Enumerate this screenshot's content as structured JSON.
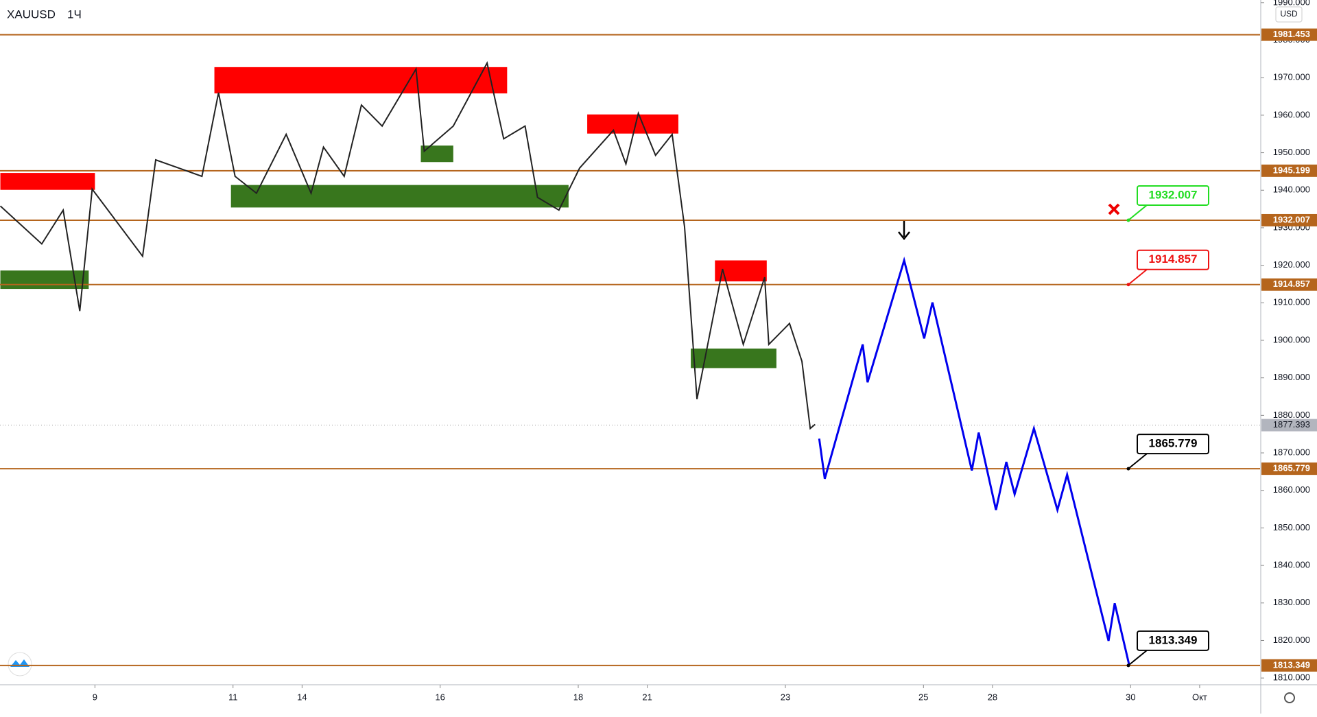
{
  "chart_data": {
    "type": "line",
    "symbol": "XAUUSD",
    "interval": "1Ч",
    "currency": "USD",
    "xlim": [
      -1.375,
      16.875
    ],
    "xticks": [
      {
        "value": 0,
        "label": "9"
      },
      {
        "value": 2,
        "label": "11"
      },
      {
        "value": 3,
        "label": "14"
      },
      {
        "value": 5,
        "label": "16"
      },
      {
        "value": 7,
        "label": "18"
      },
      {
        "value": 8,
        "label": "21"
      },
      {
        "value": 10,
        "label": "23"
      },
      {
        "value": 12,
        "label": "25"
      },
      {
        "value": 13,
        "label": "28"
      },
      {
        "value": 15,
        "label": "30"
      },
      {
        "value": 16,
        "label": "Окт"
      }
    ],
    "ylim": [
      1808.2,
      1990.7
    ],
    "yticks": [
      {
        "value": 1810,
        "label": "1810.000"
      },
      {
        "value": 1820,
        "label": "1820.000"
      },
      {
        "value": 1830,
        "label": "1830.000"
      },
      {
        "value": 1840,
        "label": "1840.000"
      },
      {
        "value": 1850,
        "label": "1850.000"
      },
      {
        "value": 1860,
        "label": "1860.000"
      },
      {
        "value": 1870,
        "label": "1870.000"
      },
      {
        "value": 1880,
        "label": "1880.000"
      },
      {
        "value": 1890,
        "label": "1890.000"
      },
      {
        "value": 1900,
        "label": "1900.000"
      },
      {
        "value": 1910,
        "label": "1910.000"
      },
      {
        "value": 1920,
        "label": "1920.000"
      },
      {
        "value": 1930,
        "label": "1930.000"
      },
      {
        "value": 1940,
        "label": "1940.000"
      },
      {
        "value": 1950,
        "label": "1950.000"
      },
      {
        "value": 1960,
        "label": "1960.000"
      },
      {
        "value": 1970,
        "label": "1970.000"
      },
      {
        "value": 1980,
        "label": "1980.000"
      },
      {
        "value": 1990,
        "label": "1990.000"
      }
    ],
    "series": [
      {
        "color": "#222222",
        "x": [
          -1.37,
          -0.77,
          -0.46,
          -0.22,
          -0.04,
          0.69,
          0.88,
          1.55,
          1.79,
          2.03,
          2.34,
          2.77,
          3.13,
          3.31,
          3.61,
          3.86,
          4.16,
          4.65,
          4.77,
          5.19,
          5.68,
          5.92,
          6.23,
          6.41,
          6.72,
          7.02,
          7.51,
          7.69,
          7.87,
          8.12,
          8.36,
          8.54,
          8.72,
          9.09,
          9.39,
          9.7,
          9.76,
          10.06,
          10.24,
          10.36,
          10.43
        ],
        "values": [
          1935.8,
          1925.7,
          1934.7,
          1907.8,
          1940.3,
          1922.4,
          1948.1,
          1943.7,
          1966.0,
          1943.7,
          1939.2,
          1954.9,
          1939.2,
          1951.5,
          1943.7,
          1962.7,
          1957.1,
          1972.3,
          1950.4,
          1957.1,
          1973.9,
          1953.7,
          1957.1,
          1938.1,
          1934.7,
          1945.9,
          1956.0,
          1947.0,
          1960.5,
          1949.3,
          1954.9,
          1930.2,
          1884.3,
          1919.0,
          1898.9,
          1916.8,
          1898.9,
          1904.5,
          1894.4,
          1876.5,
          1877.6
        ]
      },
      {
        "color": "#0000ee",
        "x": [
          10.49,
          10.57,
          11.12,
          11.19,
          11.72,
          12.01,
          12.13,
          12.7,
          12.8,
          13.05,
          13.2,
          13.32,
          13.6,
          13.94,
          14.08,
          14.68,
          14.77,
          14.98
        ],
        "values": [
          1873.8,
          1863.1,
          1898.9,
          1888.8,
          1921.3,
          1900.5,
          1910.1,
          1865.3,
          1875.4,
          1854.8,
          1867.6,
          1859.0,
          1876.5,
          1854.8,
          1864.2,
          1819.9,
          1829.9,
          1813.4
        ]
      }
    ],
    "zones": [
      {
        "color": "#ff0000",
        "x": [
          -1.37,
          0
        ],
        "y": [
          1940.1,
          1944.6
        ]
      },
      {
        "color": "#38761d",
        "x": [
          -1.37,
          -0.09
        ],
        "y": [
          1913.7,
          1918.6
        ]
      },
      {
        "color": "#ff0000",
        "x": [
          1.73,
          5.97
        ],
        "y": [
          1965.8,
          1972.8
        ]
      },
      {
        "color": "#38761d",
        "x": [
          1.97,
          6.86
        ],
        "y": [
          1935.4,
          1941.4
        ]
      },
      {
        "color": "#38761d",
        "x": [
          4.72,
          5.19
        ],
        "y": [
          1947.5,
          1951.9
        ]
      },
      {
        "color": "#ff0000",
        "x": [
          7.13,
          8.45
        ],
        "y": [
          1955.1,
          1960.2
        ]
      },
      {
        "color": "#ff0000",
        "x": [
          8.98,
          9.73
        ],
        "y": [
          1915.7,
          1921.3
        ]
      },
      {
        "color": "#38761d",
        "x": [
          8.63,
          9.87
        ],
        "y": [
          1892.6,
          1897.8
        ]
      }
    ],
    "levels": [
      {
        "value": 1981.453,
        "color": "#b5651d"
      },
      {
        "value": 1945.199,
        "color": "#b5651d"
      },
      {
        "value": 1932.007,
        "color": "#b5651d",
        "callout": "#22dd22"
      },
      {
        "value": 1914.857,
        "color": "#b5651d",
        "callout": "#ee1111"
      },
      {
        "value": 1865.779,
        "color": "#b5651d",
        "callout": "#000000"
      },
      {
        "value": 1813.349,
        "color": "#b5651d",
        "callout": "#000000"
      }
    ],
    "last_price": 1877.393
  }
}
